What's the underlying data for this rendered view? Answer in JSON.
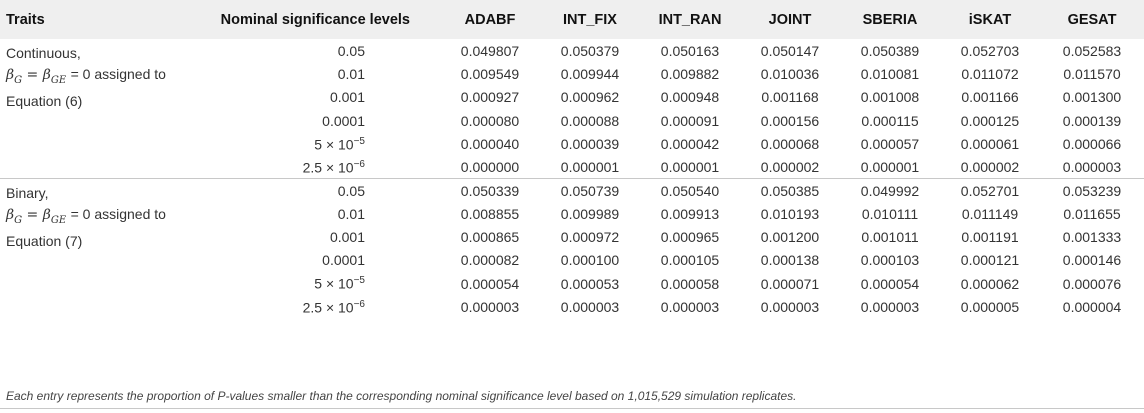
{
  "headers": {
    "traits": "Traits",
    "levels": "Nominal significance levels",
    "methods": [
      "ADABF",
      "INT_FIX",
      "INT_RAN",
      "JOINT",
      "SBERIA",
      "iSKAT",
      "GESAT"
    ]
  },
  "groups": [
    {
      "trait_name": "Continuous,",
      "trait_note": "= 0 assigned to",
      "trait_equation": "Equation (6)",
      "rows": [
        {
          "level": "0.05",
          "values": [
            "0.049807",
            "0.050379",
            "0.050163",
            "0.050147",
            "0.050389",
            "0.052703",
            "0.052583"
          ]
        },
        {
          "level": "0.01",
          "values": [
            "0.009549",
            "0.009944",
            "0.009882",
            "0.010036",
            "0.010081",
            "0.011072",
            "0.011570"
          ]
        },
        {
          "level": "0.001",
          "values": [
            "0.000927",
            "0.000962",
            "0.000948",
            "0.001168",
            "0.001008",
            "0.001166",
            "0.001300"
          ]
        },
        {
          "level": "0.0001",
          "values": [
            "0.000080",
            "0.000088",
            "0.000091",
            "0.000156",
            "0.000115",
            "0.000125",
            "0.000139"
          ]
        },
        {
          "level_base": "5 × 10",
          "level_exp": "−5",
          "values": [
            "0.000040",
            "0.000039",
            "0.000042",
            "0.000068",
            "0.000057",
            "0.000061",
            "0.000066"
          ]
        },
        {
          "level_base": "2.5 × 10",
          "level_exp": "−6",
          "values": [
            "0.000000",
            "0.000001",
            "0.000001",
            "0.000002",
            "0.000001",
            "0.000002",
            "0.000003"
          ]
        }
      ]
    },
    {
      "trait_name": "Binary,",
      "trait_note": "= 0 assigned to",
      "trait_equation": "Equation (7)",
      "rows": [
        {
          "level": "0.05",
          "values": [
            "0.050339",
            "0.050739",
            "0.050540",
            "0.050385",
            "0.049992",
            "0.052701",
            "0.053239"
          ]
        },
        {
          "level": "0.01",
          "values": [
            "0.008855",
            "0.009989",
            "0.009913",
            "0.010193",
            "0.010111",
            "0.011149",
            "0.011655"
          ]
        },
        {
          "level": "0.001",
          "values": [
            "0.000865",
            "0.000972",
            "0.000965",
            "0.001200",
            "0.001011",
            "0.001191",
            "0.001333"
          ]
        },
        {
          "level": "0.0001",
          "values": [
            "0.000082",
            "0.000100",
            "0.000105",
            "0.000138",
            "0.000103",
            "0.000121",
            "0.000146"
          ]
        },
        {
          "level_base": "5 × 10",
          "level_exp": "−5",
          "values": [
            "0.000054",
            "0.000053",
            "0.000058",
            "0.000071",
            "0.000054",
            "0.000062",
            "0.000076"
          ]
        },
        {
          "level_base": "2.5 × 10",
          "level_exp": "−6",
          "values": [
            "0.000003",
            "0.000003",
            "0.000003",
            "0.000003",
            "0.000003",
            "0.000005",
            "0.000004"
          ]
        }
      ]
    }
  ],
  "footnote": "Each entry represents the proportion of P-values smaller than the corresponding nominal significance level based on 1,015,529 simulation replicates."
}
